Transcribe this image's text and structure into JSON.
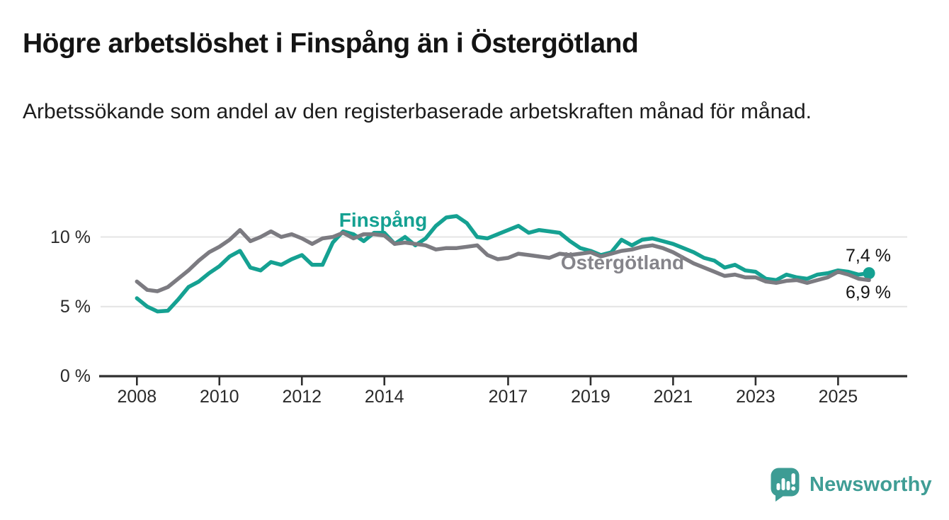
{
  "title": "Högre arbetslöshet i Finspång än i Östergötland",
  "subtitle": "Arbetssökande som andel av den registerbaserade arbetskraften månad för månad.",
  "branding": {
    "logo_text": "Newsworthy",
    "logo_color": "#3d9c94"
  },
  "chart_data": {
    "type": "line",
    "title": "Högre arbetslöshet i Finspång än i Östergötland",
    "subtitle": "Arbetssökande som andel av den registerbaserade arbetskraften månad för månad.",
    "xlabel": "",
    "ylabel": "",
    "x_unit": "year (monthly data)",
    "grid": "horizontal",
    "legend_position": "inline-labels",
    "xlim": [
      2007.1,
      2026.7
    ],
    "ylim": [
      0,
      11.9
    ],
    "x_ticks": [
      2008,
      2010,
      2012,
      2014,
      2017,
      2019,
      2021,
      2023,
      2025
    ],
    "y_ticks": [
      {
        "value": 0,
        "label": "0 %"
      },
      {
        "value": 5,
        "label": "5 %"
      },
      {
        "value": 10,
        "label": "10 %"
      }
    ],
    "x": [
      2008,
      2008.25,
      2008.5,
      2008.75,
      2009,
      2009.25,
      2009.5,
      2009.75,
      2010,
      2010.25,
      2010.5,
      2010.75,
      2011,
      2011.25,
      2011.5,
      2011.75,
      2012,
      2012.25,
      2012.5,
      2012.75,
      2013,
      2013.25,
      2013.5,
      2013.75,
      2014,
      2014.25,
      2014.5,
      2014.75,
      2015,
      2015.25,
      2015.5,
      2015.75,
      2016,
      2016.25,
      2016.5,
      2016.75,
      2017,
      2017.25,
      2017.5,
      2017.75,
      2018,
      2018.25,
      2018.5,
      2018.75,
      2019,
      2019.25,
      2019.5,
      2019.75,
      2020,
      2020.25,
      2020.5,
      2020.75,
      2021,
      2021.25,
      2021.5,
      2021.75,
      2022,
      2022.25,
      2022.5,
      2022.75,
      2023,
      2023.25,
      2023.5,
      2023.75,
      2024,
      2024.25,
      2024.5,
      2024.75,
      2025,
      2025.25,
      2025.5,
      2025.75
    ],
    "series": [
      {
        "name": "Finspång",
        "color": "#15a192",
        "end_label": "7,4 %",
        "end_value": 7.4,
        "end_dot": true,
        "values": [
          5.6,
          5.0,
          4.65,
          4.7,
          5.5,
          6.4,
          6.8,
          7.4,
          7.9,
          8.6,
          9.0,
          7.8,
          7.6,
          8.2,
          8.0,
          8.4,
          8.7,
          8.0,
          8.0,
          9.6,
          10.4,
          10.2,
          9.7,
          10.3,
          10.3,
          9.5,
          10.0,
          9.4,
          9.9,
          10.8,
          11.4,
          11.5,
          11.0,
          10.0,
          9.9,
          10.2,
          10.5,
          10.8,
          10.3,
          10.5,
          10.4,
          10.3,
          9.7,
          9.2,
          9.0,
          8.7,
          8.9,
          9.8,
          9.4,
          9.8,
          9.9,
          9.7,
          9.5,
          9.2,
          8.9,
          8.5,
          8.3,
          7.8,
          8.0,
          7.6,
          7.5,
          7.0,
          6.9,
          7.3,
          7.1,
          7.0,
          7.3,
          7.4,
          7.6,
          7.5,
          7.3,
          7.4
        ]
      },
      {
        "name": "Östergötland",
        "color": "#7c7b81",
        "end_label": "6,9 %",
        "end_value": 6.9,
        "end_dot": false,
        "values": [
          6.8,
          6.2,
          6.1,
          6.4,
          7.0,
          7.6,
          8.3,
          8.9,
          9.3,
          9.8,
          10.5,
          9.7,
          10.0,
          10.4,
          10.0,
          10.2,
          9.9,
          9.5,
          9.9,
          10.0,
          10.3,
          9.9,
          10.2,
          10.2,
          10.1,
          9.5,
          9.6,
          9.5,
          9.4,
          9.1,
          9.2,
          9.2,
          9.3,
          9.4,
          8.7,
          8.4,
          8.5,
          8.8,
          8.7,
          8.6,
          8.5,
          8.8,
          8.7,
          8.8,
          8.9,
          8.6,
          8.8,
          9.0,
          9.1,
          9.3,
          9.4,
          9.2,
          8.9,
          8.5,
          8.1,
          7.8,
          7.5,
          7.2,
          7.3,
          7.1,
          7.1,
          6.8,
          6.7,
          6.85,
          6.9,
          6.7,
          6.9,
          7.1,
          7.5,
          7.3,
          7.0,
          6.9
        ]
      }
    ]
  }
}
